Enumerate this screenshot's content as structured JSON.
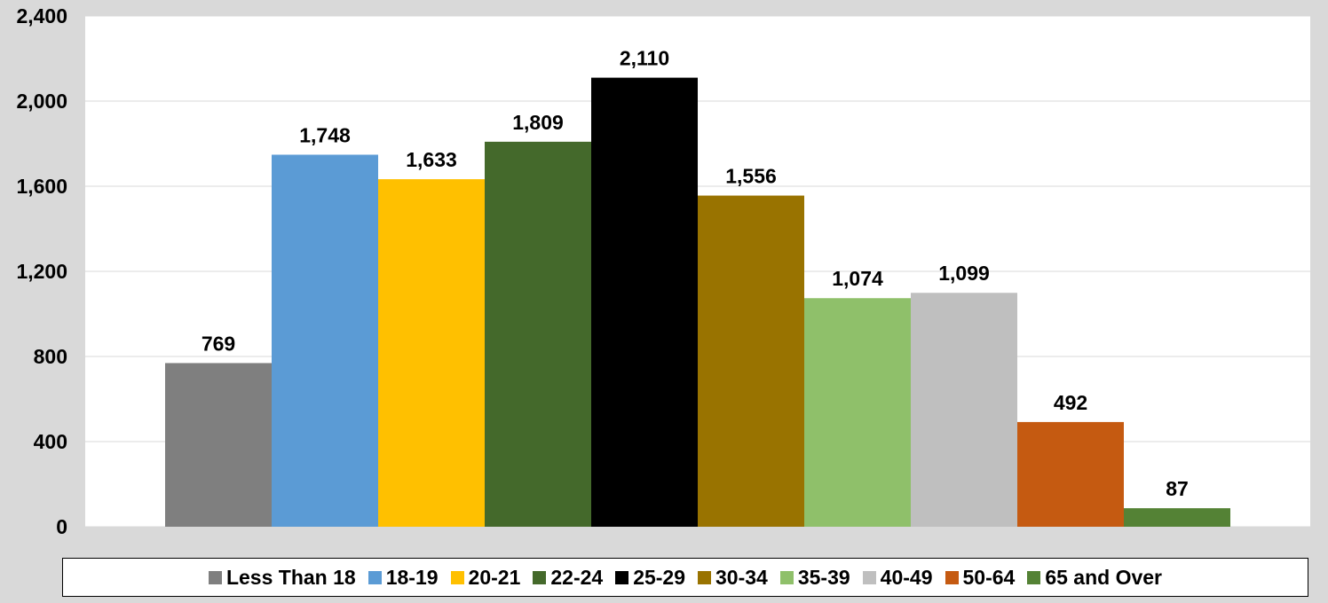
{
  "chart_data": {
    "type": "bar",
    "categories": [
      "Less Than 18",
      "18-19",
      "20-21",
      "22-24",
      "25-29",
      "30-34",
      "35-39",
      "40-49",
      "50-64",
      "65 and Over"
    ],
    "values": [
      769,
      1748,
      1633,
      1809,
      2110,
      1556,
      1074,
      1099,
      492,
      87
    ],
    "value_labels": [
      "769",
      "1,748",
      "1,633",
      "1,809",
      "2,110",
      "1,556",
      "1,074",
      "1,099",
      "492",
      "87"
    ],
    "colors": [
      "#7f7f7f",
      "#5b9bd5",
      "#ffc000",
      "#44692b",
      "#000000",
      "#997300",
      "#8fc06a",
      "#bfbfbf",
      "#c55a11",
      "#548235"
    ],
    "ylim": [
      0,
      2400
    ],
    "yticks": [
      0,
      400,
      800,
      1200,
      1600,
      2000,
      2400
    ],
    "ytick_labels": [
      "0",
      "400",
      "800",
      "1,200",
      "1,600",
      "2,000",
      "2,400"
    ],
    "grid": true,
    "legend_position": "bottom",
    "title": "",
    "xlabel": "",
    "ylabel": ""
  }
}
